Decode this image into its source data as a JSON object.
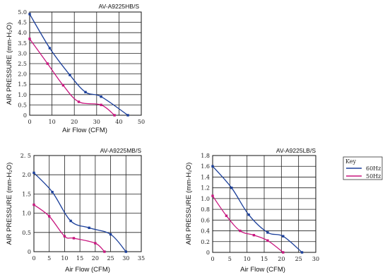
{
  "colors": {
    "s60": "#1b3f9a",
    "s50": "#c8177f"
  },
  "key": {
    "title": "Key",
    "items": [
      "60Hz",
      "50Hz"
    ]
  },
  "chart_data": [
    {
      "type": "line",
      "title": "AV-A9225HB/S",
      "xlabel": "Air Flow (CFM)",
      "ylabel": "AIR PRESSURE (mm-H₂O)",
      "xlim": [
        0,
        50
      ],
      "ylim": [
        0,
        5.0
      ],
      "xticks": [
        0,
        10,
        20,
        30,
        40,
        50
      ],
      "xtick_labels": [
        "0",
        "10",
        "20",
        "30",
        "40",
        "50"
      ],
      "yticks": [
        0,
        0.5,
        1.0,
        1.5,
        2.0,
        2.5,
        3.0,
        3.5,
        4.0,
        4.5,
        5.0
      ],
      "ytick_labels": [
        "0",
        "0.5",
        "1.0",
        "1.5",
        "2.0",
        "2.5",
        "3.0",
        "3.5",
        "4.0",
        "4.5",
        "5.0"
      ],
      "grid": true,
      "series": [
        {
          "name": "60Hz",
          "x": [
            0,
            9,
            18,
            25,
            32,
            44
          ],
          "y": [
            4.9,
            3.25,
            1.95,
            1.12,
            0.9,
            0
          ]
        },
        {
          "name": "50Hz",
          "x": [
            0,
            8,
            15,
            22,
            32,
            38
          ],
          "y": [
            3.7,
            2.5,
            1.45,
            0.65,
            0.5,
            0
          ]
        }
      ]
    },
    {
      "type": "line",
      "title": "AV-A9225MB/S",
      "xlabel": "Air Flow (CFM)",
      "ylabel": "AIR PRESSURE (mm-H₂O)",
      "xlim": [
        0,
        35
      ],
      "ylim": [
        0,
        2.5
      ],
      "xticks": [
        0,
        5,
        10,
        15,
        20,
        25,
        30,
        35
      ],
      "xtick_labels": [
        "0",
        "5",
        "10",
        "15",
        "20",
        "25",
        "30",
        "35"
      ],
      "yticks": [
        0,
        0.5,
        1.0,
        1.5,
        2.0,
        2.5
      ],
      "ytick_labels": [
        "0",
        "0.5",
        "1.0",
        "1.5",
        "2.0",
        "2. 5"
      ],
      "grid": true,
      "series": [
        {
          "name": "60Hz",
          "x": [
            0,
            6,
            12,
            18,
            25,
            30
          ],
          "y": [
            2.05,
            1.55,
            0.8,
            0.62,
            0.45,
            0
          ]
        },
        {
          "name": "50Hz",
          "x": [
            0,
            5,
            10,
            13,
            20,
            23
          ],
          "y": [
            1.22,
            0.92,
            0.4,
            0.35,
            0.22,
            0
          ]
        }
      ]
    },
    {
      "type": "line",
      "title": "AV-A9225LB/S",
      "xlabel": "Air Flow (CFM)",
      "ylabel": "AIR PRESSURE (mm-H₂O)",
      "xlim": [
        0,
        30
      ],
      "ylim": [
        0,
        1.8
      ],
      "xticks": [
        0,
        5,
        10,
        15,
        20,
        25,
        30
      ],
      "xtick_labels": [
        "0",
        "5",
        "10",
        "15",
        "20",
        "25",
        "30"
      ],
      "yticks": [
        0,
        0.2,
        0.4,
        0.6,
        0.8,
        1.0,
        1.2,
        1.4,
        1.6,
        1.8
      ],
      "ytick_labels": [
        "0",
        "0.2",
        "0.4",
        "0.6",
        "0.8",
        "1.0",
        "1.2",
        "1.4",
        "1.6",
        "1.8"
      ],
      "grid": true,
      "series": [
        {
          "name": "60Hz",
          "x": [
            0,
            5.5,
            10.5,
            16,
            20.5,
            26
          ],
          "y": [
            1.6,
            1.2,
            0.7,
            0.37,
            0.3,
            0
          ]
        },
        {
          "name": "50Hz",
          "x": [
            0,
            4,
            8,
            12,
            16,
            20.5
          ],
          "y": [
            1.05,
            0.68,
            0.4,
            0.32,
            0.22,
            0
          ]
        }
      ]
    }
  ]
}
